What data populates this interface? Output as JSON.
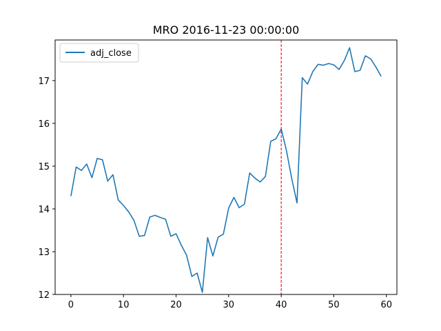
{
  "chart_data": {
    "type": "line",
    "title": "MRO 2016-11-23 00:00:00",
    "xlabel": "",
    "ylabel": "",
    "xlim": [
      -3,
      62
    ],
    "ylim": [
      12.0,
      17.95
    ],
    "x_ticks": [
      0,
      10,
      20,
      30,
      40,
      50,
      60
    ],
    "y_ticks": [
      12,
      13,
      14,
      15,
      16,
      17
    ],
    "grid": false,
    "legend_position": "top-left",
    "vertical_line": {
      "x": 40,
      "color": "#ff0000",
      "style": "dashed"
    },
    "series": [
      {
        "name": "adj_close",
        "color": "#1f77b4",
        "x": [
          0,
          1,
          2,
          3,
          4,
          5,
          6,
          7,
          8,
          9,
          10,
          11,
          12,
          13,
          14,
          15,
          16,
          17,
          18,
          19,
          20,
          21,
          22,
          23,
          24,
          25,
          26,
          27,
          28,
          29,
          30,
          31,
          32,
          33,
          34,
          35,
          36,
          37,
          38,
          39,
          40,
          41,
          42,
          43,
          44,
          45,
          46,
          47,
          48,
          49,
          50,
          51,
          52,
          53,
          54,
          55,
          56,
          57,
          58,
          59
        ],
        "values": [
          14.3,
          14.98,
          14.9,
          15.05,
          14.73,
          15.18,
          15.15,
          14.65,
          14.8,
          14.21,
          14.08,
          13.93,
          13.73,
          13.36,
          13.38,
          13.81,
          13.85,
          13.8,
          13.76,
          13.36,
          13.42,
          13.15,
          12.92,
          12.42,
          12.5,
          12.05,
          13.33,
          12.9,
          13.34,
          13.41,
          14.02,
          14.27,
          14.03,
          14.11,
          14.84,
          14.72,
          14.63,
          14.76,
          15.58,
          15.64,
          15.87,
          15.36,
          14.71,
          14.14,
          17.07,
          16.92,
          17.21,
          17.38,
          17.36,
          17.4,
          17.37,
          17.26,
          17.47,
          17.77,
          17.21,
          17.24,
          17.58,
          17.51,
          17.32,
          17.1
        ]
      }
    ]
  }
}
